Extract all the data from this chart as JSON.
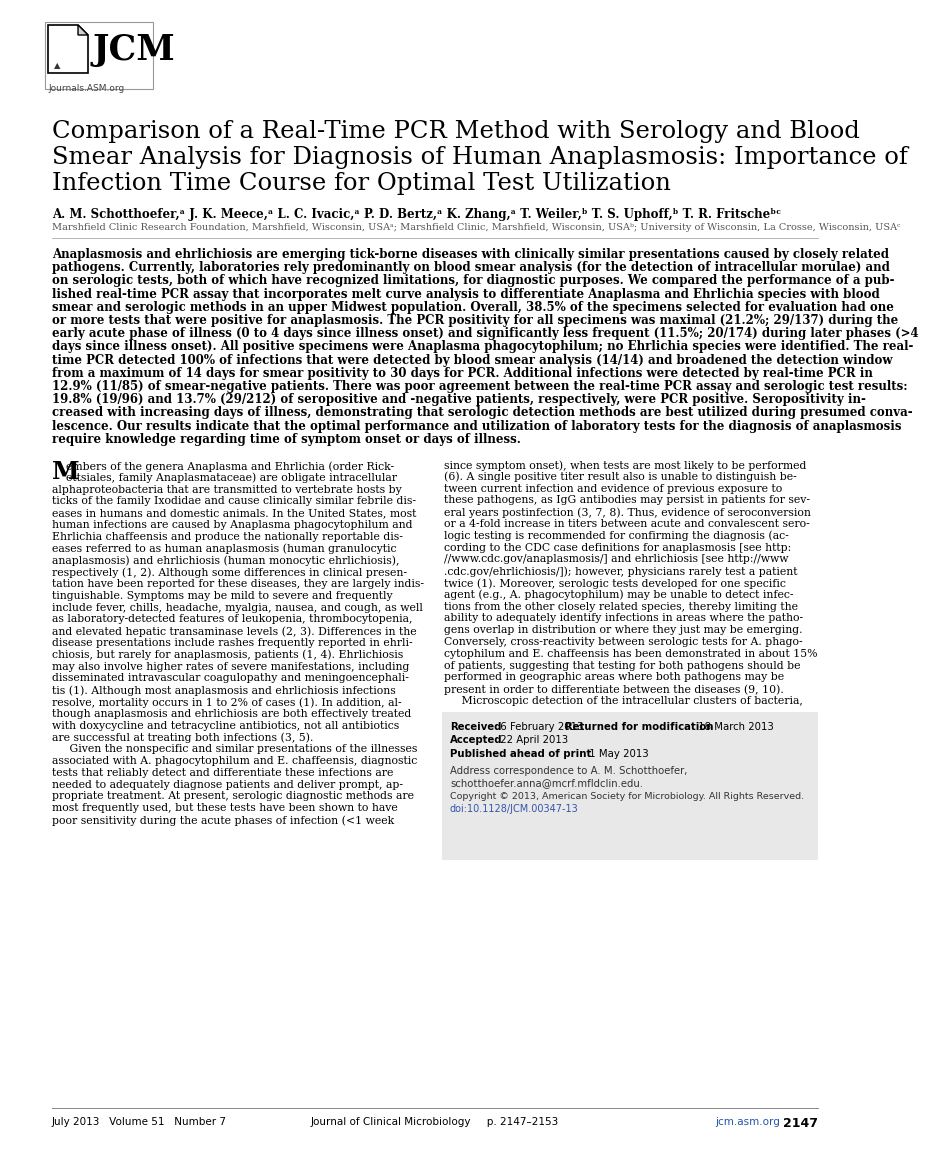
{
  "bg_color": "#ffffff",
  "title_line1": "Comparison of a Real-Time PCR Method with Serology and Blood",
  "title_line2": "Smear Analysis for Diagnosis of Human Anaplasmosis: Importance of",
  "title_line3": "Infection Time Course for Optimal Test Utilization",
  "authors_bold": "A. M. Schotthoefer,",
  "authors_sup_a1": "a",
  "authors_rest": " J. K. Meece,",
  "affiliations": "Marshfield Clinic Research Foundation, Marshfield, Wisconsin, USAᵃ; Marshfield Clinic, Marshfield, Wisconsin, USAᵇ; University of Wisconsin, La Crosse, Wisconsin, USAᶜ",
  "abstract_lines": [
    "Anaplasmosis and ehrlichiosis are emerging tick-borne diseases with clinically similar presentations caused by closely related",
    "pathogens. Currently, laboratories rely predominantly on blood smear analysis (for the detection of intracellular morulae) and",
    "on serologic tests, both of which have recognized limitations, for diagnostic purposes. We compared the performance of a pub-",
    "lished real-time PCR assay that incorporates melt curve analysis to differentiate Anaplasma and Ehrlichia species with blood",
    "smear and serologic methods in an upper Midwest population. Overall, 38.5% of the specimens selected for evaluation had one",
    "or more tests that were positive for anaplasmosis. The PCR positivity for all specimens was maximal (21.2%; 29/137) during the",
    "early acute phase of illness (0 to 4 days since illness onset) and significantly less frequent (11.5%; 20/174) during later phases (>4",
    "days since illness onset). All positive specimens were Anaplasma phagocytophilum; no Ehrlichia species were identified. The real-",
    "time PCR detected 100% of infections that were detected by blood smear analysis (14/14) and broadened the detection window",
    "from a maximum of 14 days for smear positivity to 30 days for PCR. Additional infections were detected by real-time PCR in",
    "12.9% (11/85) of smear-negative patients. There was poor agreement between the real-time PCR assay and serologic test results:",
    "19.8% (19/96) and 13.7% (29/212) of seropositive and -negative patients, respectively, were PCR positive. Seropositivity in-",
    "creased with increasing days of illness, demonstrating that serologic detection methods are best utilized during presumed conva-",
    "lescence. Our results indicate that the optimal performance and utilization of laboratory tests for the diagnosis of anaplasmosis",
    "require knowledge regarding time of symptom onset or days of illness."
  ],
  "body_left_lines": [
    "embers of the genera Anaplasma and Ehrlichia (order Rick-",
    "ettsiales, family Anaplasmataceae) are obligate intracellular",
    "alphaproteobacteria that are transmitted to vertebrate hosts by",
    "ticks of the family Ixodidae and cause clinically similar febrile dis-",
    "eases in humans and domestic animals. In the United States, most",
    "human infections are caused by Anaplasma phagocytophilum and",
    "Ehrlichia chaffeensis and produce the nationally reportable dis-",
    "eases referred to as human anaplasmosis (human granulocytic",
    "anaplasmosis) and ehrlichiosis (human monocytic ehrlichiosis),",
    "respectively (1, 2). Although some differences in clinical presen-",
    "tation have been reported for these diseases, they are largely indis-",
    "tinguishable. Symptoms may be mild to severe and frequently",
    "include fever, chills, headache, myalgia, nausea, and cough, as well",
    "as laboratory-detected features of leukopenia, thrombocytopenia,",
    "and elevated hepatic transaminase levels (2, 3). Differences in the",
    "disease presentations include rashes frequently reported in ehrli-",
    "chiosis, but rarely for anaplasmosis, patients (1, 4). Ehrlichiosis",
    "may also involve higher rates of severe manifestations, including",
    "disseminated intravascular coagulopathy and meningoencephali-",
    "tis (1). Although most anaplasmosis and ehrlichiosis infections",
    "resolve, mortality occurs in 1 to 2% of cases (1). In addition, al-",
    "though anaplasmosis and ehrlichiosis are both effectively treated",
    "with doxycycline and tetracycline antibiotics, not all antibiotics",
    "are successful at treating both infections (3, 5).",
    "     Given the nonspecific and similar presentations of the illnesses",
    "associated with A. phagocytophilum and E. chaffeensis, diagnostic",
    "tests that reliably detect and differentiate these infections are",
    "needed to adequately diagnose patients and deliver prompt, ap-",
    "propriate treatment. At present, serologic diagnostic methods are",
    "most frequently used, but these tests have been shown to have",
    "poor sensitivity during the acute phases of infection (<1 week"
  ],
  "body_right_lines": [
    "since symptom onset), when tests are most likely to be performed",
    "(6). A single positive titer result also is unable to distinguish be-",
    "tween current infection and evidence of previous exposure to",
    "these pathogens, as IgG antibodies may persist in patients for sev-",
    "eral years postinfection (3, 7, 8). Thus, evidence of seroconversion",
    "or a 4-fold increase in titers between acute and convalescent sero-",
    "logic testing is recommended for confirming the diagnosis (ac-",
    "cording to the CDC case definitions for anaplasmosis [see http:",
    "//www.cdc.gov/anaplasmosis/] and ehrlichiosis [see http://www",
    ".cdc.gov/ehrlichiosis/]); however, physicians rarely test a patient",
    "twice (1). Moreover, serologic tests developed for one specific",
    "agent (e.g., A. phagocytophilum) may be unable to detect infec-",
    "tions from the other closely related species, thereby limiting the",
    "ability to adequately identify infections in areas where the patho-",
    "gens overlap in distribution or where they just may be emerging.",
    "Conversely, cross-reactivity between serologic tests for A. phago-",
    "cytophilum and E. chaffeensis has been demonstrated in about 15%",
    "of patients, suggesting that testing for both pathogens should be",
    "performed in geographic areas where both pathogens may be",
    "present in order to differentiate between the diseases (9, 10).",
    "     Microscopic detection of the intracellular clusters of bacteria,"
  ],
  "sidebar_bg": "#e8e8e8",
  "sidebar_received_bold": "Received",
  "sidebar_received_normal": " 6 February 2013",
  "sidebar_returned_bold": "Returned for modification",
  "sidebar_returned_normal": " 18 March 2013",
  "sidebar_accepted_bold": "Accepted",
  "sidebar_accepted_normal": " 22 April 2013",
  "sidebar_published_bold": "Published ahead of print",
  "sidebar_published_normal": " 1 May 2013",
  "sidebar_address1": "Address correspondence to A. M. Schotthoefer,",
  "sidebar_address2": "schotthoefer.anna@mcrf.mfldclin.edu.",
  "sidebar_copyright": "Copyright © 2013, American Society for Microbiology. All Rights Reserved.",
  "sidebar_doi": "doi:10.1128/JCM.00347-13",
  "footer_left": "July 2013   Volume 51   Number 7",
  "footer_center": "Journal of Clinical Microbiology     p. 2147–2153",
  "footer_right_link": "jcm.asm.org",
  "footer_right_page": "2147"
}
